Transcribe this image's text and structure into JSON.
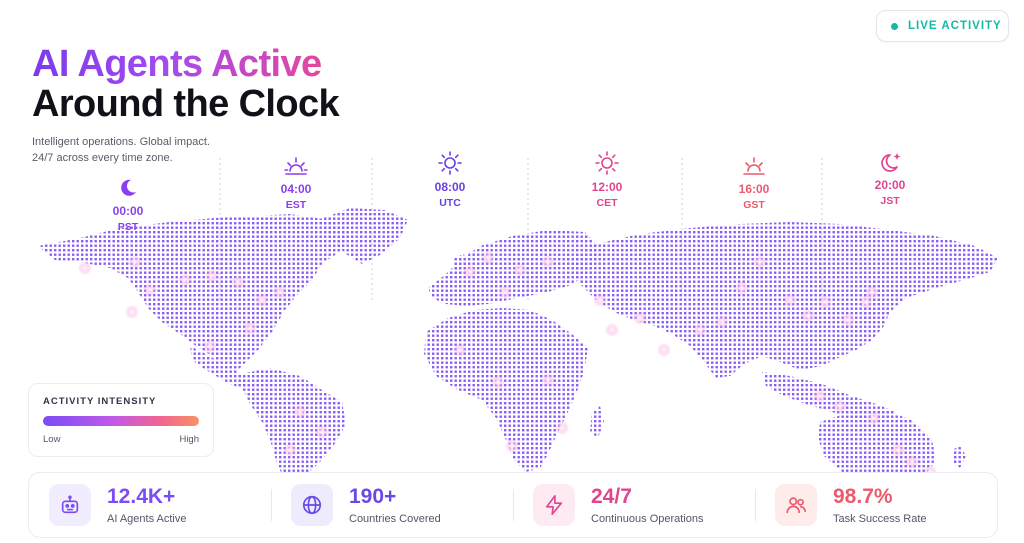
{
  "badge": {
    "label": "LIVE ACTIVITY",
    "color": "#16b8a8"
  },
  "header": {
    "title_line1": "AI Agents Active",
    "title_line2": "Around the Clock",
    "subtitle_line1": "Intelligent operations. Global impact.",
    "subtitle_line2": "24/7 across every time zone."
  },
  "timezones": [
    {
      "time": "00:00",
      "zone": "PST",
      "icon": "moon-icon",
      "color": "#8a3ff0"
    },
    {
      "time": "04:00",
      "zone": "EST",
      "icon": "sunrise-icon",
      "color": "#8a3ff0"
    },
    {
      "time": "08:00",
      "zone": "UTC",
      "icon": "sun-icon",
      "color": "#6a3ee6"
    },
    {
      "time": "12:00",
      "zone": "CET",
      "icon": "sun-icon",
      "color": "#e0458f"
    },
    {
      "time": "16:00",
      "zone": "GST",
      "icon": "sunset-icon",
      "color": "#ec5a6c"
    },
    {
      "time": "20:00",
      "zone": "JST",
      "icon": "moon-star-icon",
      "color": "#e0458f"
    }
  ],
  "legend": {
    "title": "ACTIVITY INTENSITY",
    "low": "Low",
    "high": "High"
  },
  "stats": [
    {
      "value": "12.4K+",
      "label": "AI Agents Active",
      "icon": "robot-icon",
      "color": "#7b4cf5",
      "bg": "#f1ecfe"
    },
    {
      "value": "190+",
      "label": "Countries Covered",
      "icon": "globe-icon",
      "color": "#6a4ae6",
      "bg": "#eeebfd"
    },
    {
      "value": "24/7",
      "label": "Continuous Operations",
      "icon": "lightning-icon",
      "color": "#e0458f",
      "bg": "#fdeaf2"
    },
    {
      "value": "98.7%",
      "label": "Task Success Rate",
      "icon": "users-icon",
      "color": "#ec5a6c",
      "bg": "#fdecea"
    }
  ]
}
